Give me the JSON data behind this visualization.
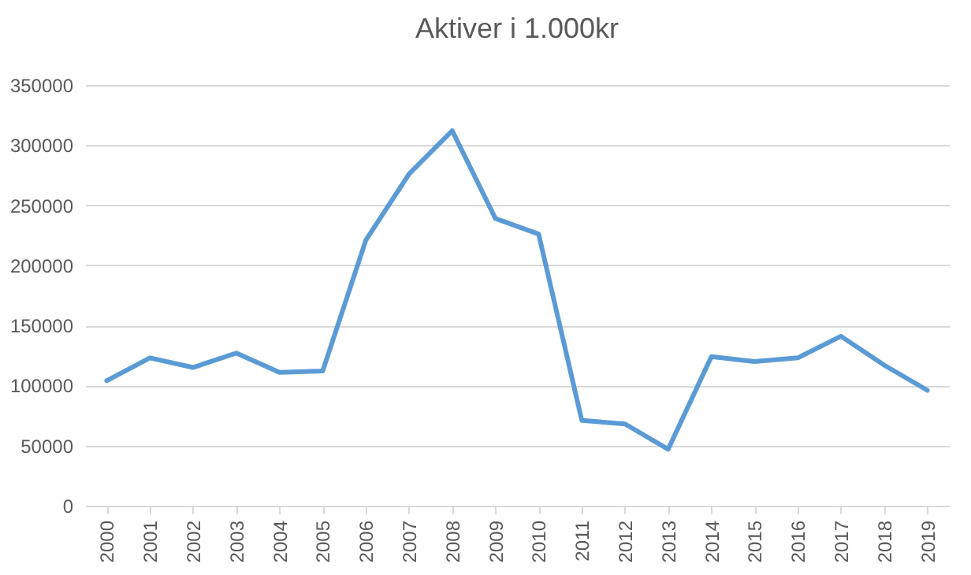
{
  "chart_data": {
    "type": "line",
    "title": "Aktiver i 1.000kr",
    "categories": [
      "2000",
      "2001",
      "2002",
      "2003",
      "2004",
      "2005",
      "2006",
      "2007",
      "2008",
      "2009",
      "2010",
      "2011",
      "2012",
      "2013",
      "2014",
      "2015",
      "2016",
      "2017",
      "2018",
      "2019"
    ],
    "series": [
      {
        "color": "#5b9bd5",
        "values": [
          104000,
          123000,
          115000,
          127000,
          111000,
          112000,
          221000,
          276000,
          312000,
          239000,
          226000,
          71000,
          68000,
          47000,
          124000,
          120000,
          123000,
          141000,
          117000,
          96000
        ]
      }
    ],
    "ylim": [
      0,
      350000
    ],
    "yticks": [
      0,
      50000,
      100000,
      150000,
      200000,
      250000,
      300000,
      350000
    ],
    "grid": "y",
    "legend": false,
    "marker": "none",
    "line_style": "solid"
  }
}
